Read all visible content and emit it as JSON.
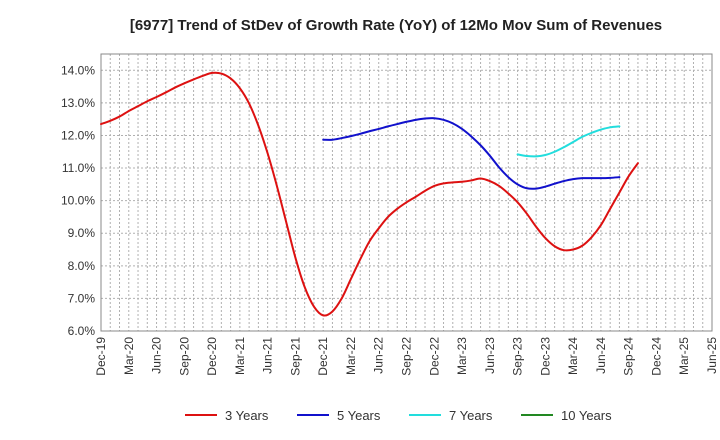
{
  "chart_data": {
    "type": "line",
    "title": "[6977]  Trend of StDev of Growth Rate (YoY) of 12Mo Mov Sum of Revenues",
    "xlabel": "",
    "ylabel": "",
    "ylim": [
      6.0,
      14.5
    ],
    "yticks": [
      6.0,
      7.0,
      8.0,
      9.0,
      10.0,
      11.0,
      12.0,
      13.0,
      14.0
    ],
    "ytick_labels": [
      "6.0%",
      "7.0%",
      "8.0%",
      "9.0%",
      "10.0%",
      "11.0%",
      "12.0%",
      "13.0%",
      "14.0%"
    ],
    "x_start": "Dec-19",
    "x_months": 66,
    "xtick_labels": [
      "Dec-19",
      "Mar-20",
      "Jun-20",
      "Sep-20",
      "Dec-20",
      "Mar-21",
      "Jun-21",
      "Sep-21",
      "Dec-21",
      "Mar-22",
      "Jun-22",
      "Sep-22",
      "Dec-22",
      "Mar-23",
      "Jun-23",
      "Sep-23",
      "Dec-23",
      "Mar-24",
      "Jun-24",
      "Sep-24",
      "Dec-24",
      "Mar-25",
      "Jun-25"
    ],
    "grid": true,
    "legend_position": "bottom",
    "series": [
      {
        "name": "3 Years",
        "color": "#dd1111",
        "points": [
          [
            0,
            12.35
          ],
          [
            1,
            12.45
          ],
          [
            2,
            12.58
          ],
          [
            3,
            12.75
          ],
          [
            4,
            12.9
          ],
          [
            5,
            13.05
          ],
          [
            6,
            13.18
          ],
          [
            7,
            13.32
          ],
          [
            8,
            13.47
          ],
          [
            9,
            13.6
          ],
          [
            10,
            13.72
          ],
          [
            11,
            13.83
          ],
          [
            12,
            13.92
          ],
          [
            13,
            13.9
          ],
          [
            14,
            13.75
          ],
          [
            15,
            13.45
          ],
          [
            16,
            12.98
          ],
          [
            17,
            12.3
          ],
          [
            18,
            11.45
          ],
          [
            19,
            10.45
          ],
          [
            20,
            9.35
          ],
          [
            21,
            8.25
          ],
          [
            22,
            7.35
          ],
          [
            23,
            6.75
          ],
          [
            24,
            6.48
          ],
          [
            25,
            6.6
          ],
          [
            26,
            7.0
          ],
          [
            27,
            7.6
          ],
          [
            28,
            8.2
          ],
          [
            29,
            8.75
          ],
          [
            30,
            9.15
          ],
          [
            31,
            9.5
          ],
          [
            32,
            9.75
          ],
          [
            33,
            9.95
          ],
          [
            34,
            10.12
          ],
          [
            35,
            10.3
          ],
          [
            36,
            10.45
          ],
          [
            37,
            10.53
          ],
          [
            38,
            10.56
          ],
          [
            39,
            10.58
          ],
          [
            40,
            10.62
          ],
          [
            41,
            10.68
          ],
          [
            42,
            10.6
          ],
          [
            43,
            10.45
          ],
          [
            44,
            10.22
          ],
          [
            45,
            9.95
          ],
          [
            46,
            9.6
          ],
          [
            47,
            9.2
          ],
          [
            48,
            8.85
          ],
          [
            49,
            8.6
          ],
          [
            50,
            8.48
          ],
          [
            51,
            8.5
          ],
          [
            52,
            8.62
          ],
          [
            53,
            8.88
          ],
          [
            54,
            9.25
          ],
          [
            55,
            9.75
          ],
          [
            56,
            10.25
          ],
          [
            57,
            10.75
          ],
          [
            58,
            11.15
          ]
        ]
      },
      {
        "name": "5 Years",
        "color": "#1111cc",
        "points": [
          [
            24,
            11.87
          ],
          [
            25,
            11.87
          ],
          [
            26,
            11.92
          ],
          [
            27,
            11.98
          ],
          [
            28,
            12.05
          ],
          [
            29,
            12.13
          ],
          [
            30,
            12.2
          ],
          [
            31,
            12.28
          ],
          [
            32,
            12.35
          ],
          [
            33,
            12.42
          ],
          [
            34,
            12.48
          ],
          [
            35,
            12.52
          ],
          [
            36,
            12.53
          ],
          [
            37,
            12.48
          ],
          [
            38,
            12.37
          ],
          [
            39,
            12.2
          ],
          [
            40,
            11.97
          ],
          [
            41,
            11.7
          ],
          [
            42,
            11.38
          ],
          [
            43,
            11.02
          ],
          [
            44,
            10.72
          ],
          [
            45,
            10.5
          ],
          [
            46,
            10.38
          ],
          [
            47,
            10.37
          ],
          [
            48,
            10.43
          ],
          [
            49,
            10.52
          ],
          [
            50,
            10.6
          ],
          [
            51,
            10.66
          ],
          [
            52,
            10.69
          ],
          [
            53,
            10.69
          ],
          [
            54,
            10.69
          ],
          [
            55,
            10.7
          ],
          [
            56,
            10.72
          ]
        ]
      },
      {
        "name": "7 Years",
        "color": "#22dddd",
        "points": [
          [
            45,
            11.42
          ],
          [
            46,
            11.37
          ],
          [
            47,
            11.36
          ],
          [
            48,
            11.4
          ],
          [
            49,
            11.5
          ],
          [
            50,
            11.64
          ],
          [
            51,
            11.8
          ],
          [
            52,
            11.96
          ],
          [
            53,
            12.08
          ],
          [
            54,
            12.18
          ],
          [
            55,
            12.25
          ],
          [
            56,
            12.28
          ]
        ]
      },
      {
        "name": "10 Years",
        "color": "#228822",
        "points": []
      }
    ]
  }
}
